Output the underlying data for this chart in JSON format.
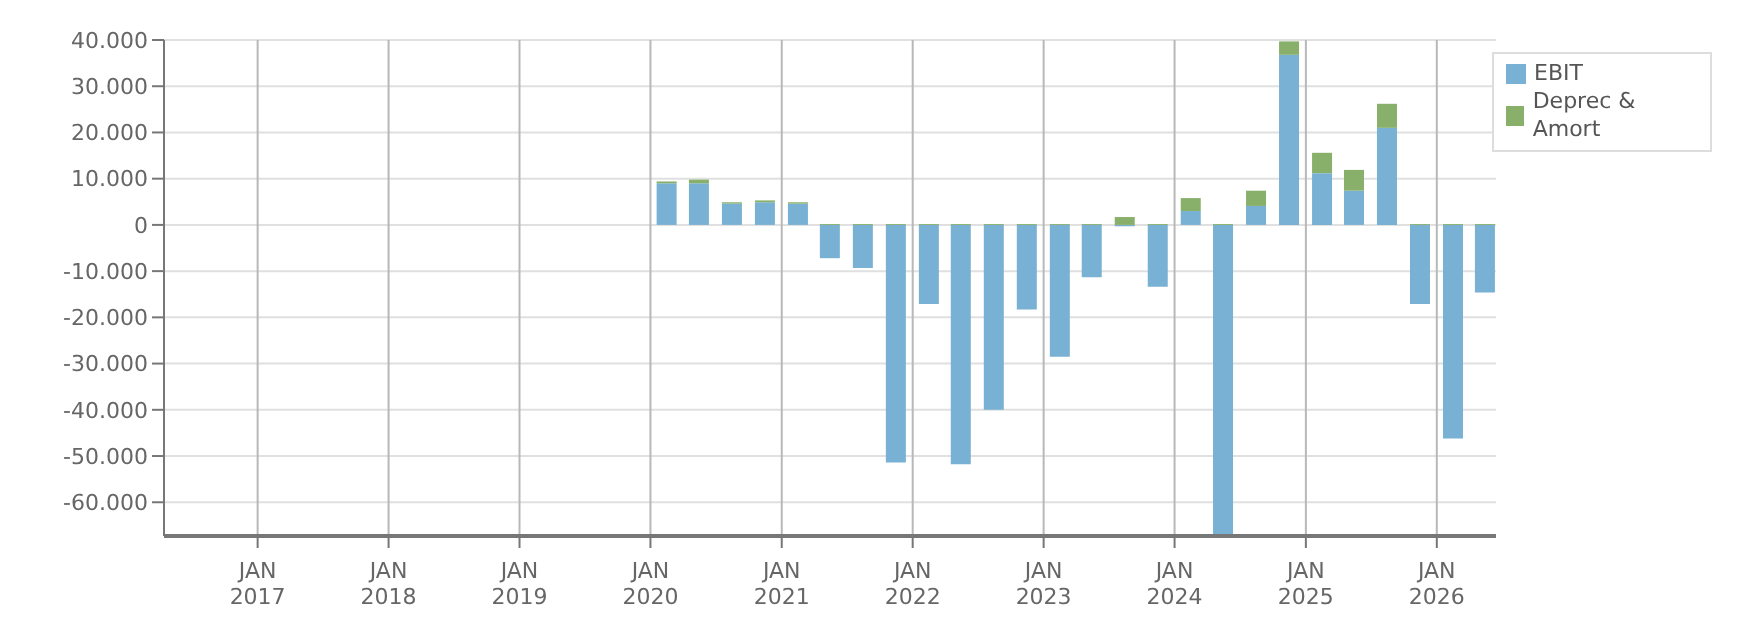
{
  "chart_data": {
    "type": "bar",
    "stacked": true,
    "x": [
      "2020-02-15",
      "2020-05-15",
      "2020-08-15",
      "2020-11-15",
      "2021-02-15",
      "2021-05-15",
      "2021-08-15",
      "2021-11-15",
      "2022-02-15",
      "2022-05-15",
      "2022-08-15",
      "2022-11-15",
      "2023-02-15",
      "2023-05-15",
      "2023-08-15",
      "2023-11-15",
      "2024-02-15",
      "2024-05-15",
      "2024-08-15",
      "2024-11-15",
      "2025-02-15",
      "2025-05-15",
      "2025-08-15",
      "2025-11-15",
      "2026-02-15",
      "2026-05-15"
    ],
    "series": [
      {
        "name": "EBIT",
        "color": "#78b1d3",
        "values": [
          9000,
          9000,
          4600,
          4900,
          4600,
          -7200,
          -9300,
          -51400,
          -17100,
          -51800,
          -40000,
          -18300,
          -28500,
          -11300,
          -300,
          -13400,
          3000,
          -67300,
          4100,
          36800,
          11200,
          7400,
          21000,
          -17100,
          -46200,
          -14600
        ]
      },
      {
        "name": "Deprec & Amort",
        "color": "#88b06a",
        "values": [
          400,
          800,
          300,
          400,
          300,
          200,
          200,
          200,
          200,
          200,
          200,
          200,
          200,
          200,
          1700,
          200,
          2800,
          200,
          3300,
          2900,
          4400,
          4500,
          5200,
          200,
          200,
          200
        ]
      }
    ],
    "xlim": [
      "2016-04-15",
      "2026-06-15"
    ],
    "xticks": [
      {
        "value": "2017-01-01",
        "label": "JAN\n2017"
      },
      {
        "value": "2018-01-01",
        "label": "JAN\n2018"
      },
      {
        "value": "2019-01-01",
        "label": "JAN\n2019"
      },
      {
        "value": "2020-01-01",
        "label": "JAN\n2020"
      },
      {
        "value": "2021-01-01",
        "label": "JAN\n2021"
      },
      {
        "value": "2022-01-01",
        "label": "JAN\n2022"
      },
      {
        "value": "2023-01-01",
        "label": "JAN\n2023"
      },
      {
        "value": "2024-01-01",
        "label": "JAN\n2024"
      },
      {
        "value": "2025-01-01",
        "label": "JAN\n2025"
      },
      {
        "value": "2026-01-01",
        "label": "JAN\n2026"
      }
    ],
    "ylim": [
      -67300,
      40000
    ],
    "yticks": [
      {
        "value": -60000,
        "label": "-60.000"
      },
      {
        "value": -50000,
        "label": "-50.000"
      },
      {
        "value": -40000,
        "label": "-40.000"
      },
      {
        "value": -30000,
        "label": "-30.000"
      },
      {
        "value": -20000,
        "label": "-20.000"
      },
      {
        "value": -10000,
        "label": "-10.000"
      },
      0,
      {
        "value": 10000,
        "label": "10.000"
      },
      {
        "value": 20000,
        "label": "20.000"
      },
      {
        "value": 30000,
        "label": "30.000"
      },
      {
        "value": 40000,
        "label": "40.000"
      }
    ],
    "grid": true,
    "legend": "top right"
  }
}
